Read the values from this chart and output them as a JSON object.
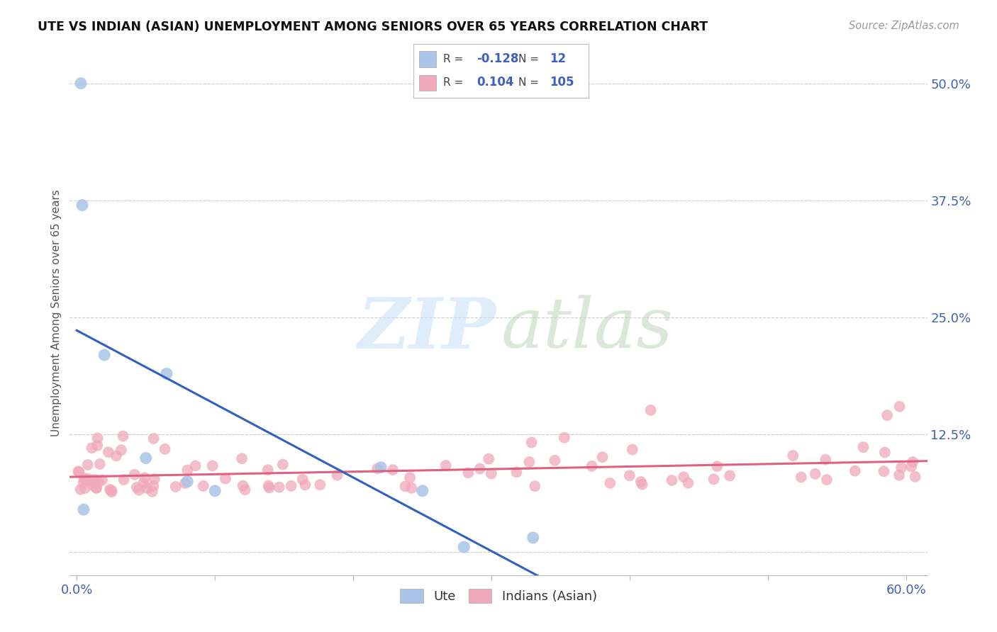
{
  "title": "UTE VS INDIAN (ASIAN) UNEMPLOYMENT AMONG SENIORS OVER 65 YEARS CORRELATION CHART",
  "source": "Source: ZipAtlas.com",
  "ylabel": "Unemployment Among Seniors over 65 years",
  "xlim": [
    -0.005,
    0.615
  ],
  "ylim": [
    -0.025,
    0.535
  ],
  "ytick_positions": [
    0.0,
    0.125,
    0.25,
    0.375,
    0.5
  ],
  "ytick_labels": [
    "",
    "12.5%",
    "25.0%",
    "37.5%",
    "50.0%"
  ],
  "xtick_positions": [
    0.0,
    0.1,
    0.2,
    0.3,
    0.4,
    0.5,
    0.6
  ],
  "xtick_labels": [
    "0.0%",
    "",
    "",
    "",
    "",
    "",
    "60.0%"
  ],
  "ute_color": "#aac4e8",
  "indian_color": "#f0a8bc",
  "ute_line_color": "#3060c0",
  "indian_line_color": "#e06080",
  "legend_ute_R": "-0.128",
  "legend_ute_N": "12",
  "legend_indian_R": "0.104",
  "legend_indian_N": "105",
  "ute_x": [
    0.003,
    0.004,
    0.005,
    0.02,
    0.05,
    0.065,
    0.08,
    0.1,
    0.22,
    0.25,
    0.28,
    0.33
  ],
  "ute_y": [
    0.5,
    0.37,
    0.045,
    0.21,
    0.1,
    0.19,
    0.075,
    0.065,
    0.09,
    0.065,
    0.005,
    0.015
  ],
  "background_color": "#ffffff",
  "grid_color": "#cccccc",
  "watermark_zip_color": "#c8ddf0",
  "watermark_atlas_color": "#b8ccb8"
}
